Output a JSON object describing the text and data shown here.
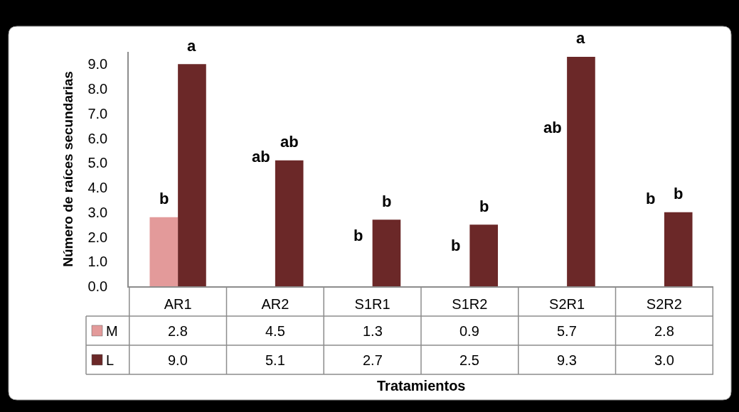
{
  "chart_data": {
    "type": "bar",
    "categories": [
      "AR1",
      "AR2",
      "S1R1",
      "S1R2",
      "S2R1",
      "S2R2"
    ],
    "series": [
      {
        "name": "M",
        "color": "#e39a9a",
        "values": [
          2.8,
          null,
          null,
          null,
          null,
          null
        ],
        "value_labels": [
          "2.8",
          "4.5",
          "1.3",
          "0.9",
          "5.7",
          "2.8"
        ]
      },
      {
        "name": "L",
        "color": "#6b2828",
        "values": [
          9.0,
          5.1,
          2.7,
          2.5,
          9.3,
          3.0
        ],
        "value_labels": [
          "9.0",
          "5.1",
          "2.7",
          "2.5",
          "9.3",
          "3.0"
        ]
      }
    ],
    "ylim": [
      0,
      9.5
    ],
    "yticks": [
      {
        "value": 0,
        "label": "0.0"
      },
      {
        "value": 1,
        "label": "1.0"
      },
      {
        "value": 2,
        "label": "2.0"
      },
      {
        "value": 3,
        "label": "3.0"
      },
      {
        "value": 4,
        "label": "4.0"
      },
      {
        "value": 5,
        "label": "5.0"
      },
      {
        "value": 6,
        "label": "6.0"
      },
      {
        "value": 7,
        "label": "7.0"
      },
      {
        "value": 8,
        "label": "8.0"
      },
      {
        "value": 9,
        "label": "9.0"
      }
    ],
    "ylabel": "Número de raíces secundarias",
    "xlabel": "Tratamientos",
    "annotations": [
      {
        "text": "b",
        "x": "AR1",
        "y": 2.8
      },
      {
        "text": "a",
        "x": "AR1",
        "y": 9.0
      },
      {
        "text": "ab",
        "x": "AR2",
        "y": 4.5
      },
      {
        "text": "ab",
        "x": "AR2",
        "y": 5.1
      },
      {
        "text": "b",
        "x": "S1R1",
        "y": 1.3
      },
      {
        "text": "b",
        "x": "S1R1",
        "y": 2.7
      },
      {
        "text": "b",
        "x": "S1R2",
        "y": 0.9
      },
      {
        "text": "b",
        "x": "S1R2",
        "y": 2.5
      },
      {
        "text": "ab",
        "x": "S2R1",
        "y": 5.7
      },
      {
        "text": "a",
        "x": "S2R1",
        "y": 9.3
      },
      {
        "text": "b",
        "x": "S2R2",
        "y": 2.8
      },
      {
        "text": "b",
        "x": "S2R2",
        "y": 3.0
      }
    ],
    "legend": "bottom left"
  }
}
